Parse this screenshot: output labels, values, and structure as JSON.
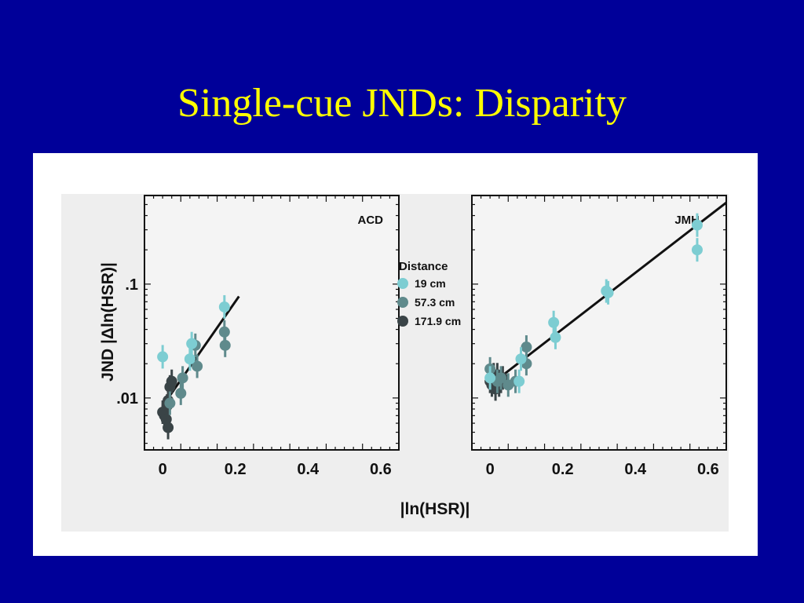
{
  "slide": {
    "title": "Single-cue JNDs: Disparity"
  },
  "colors": {
    "background": "#000099",
    "title": "#ffff00",
    "series": [
      "#7dcdd2",
      "#5f8a8c",
      "#3a4447"
    ]
  },
  "chart_data": [
    {
      "type": "scatter",
      "panel_label": "ACD",
      "ylabel": "JND |Δln(HSR)|",
      "xlabel": "|ln(HSR)|",
      "x_ticks": [
        "0",
        "0.2",
        "0.4",
        "0.6"
      ],
      "y_ticks": [
        ".01",
        ".1"
      ],
      "xlim": [
        -0.05,
        0.65
      ],
      "ylim": [
        0.0035,
        0.6
      ],
      "y_scale": "log",
      "grid": false,
      "fit_line": {
        "from": [
          0.0,
          0.0085
        ],
        "to": [
          0.21,
          0.078
        ]
      },
      "series": [
        {
          "name": "19 cm",
          "points": [
            [
              0.0,
              0.023
            ],
            [
              0.075,
              0.022
            ],
            [
              0.08,
              0.03
            ],
            [
              0.17,
              0.063
            ]
          ]
        },
        {
          "name": "57.3 cm",
          "points": [
            [
              0.02,
              0.009
            ],
            [
              0.05,
              0.011
            ],
            [
              0.055,
              0.015
            ],
            [
              0.09,
              0.029
            ],
            [
              0.095,
              0.019
            ],
            [
              0.17,
              0.038
            ],
            [
              0.172,
              0.029
            ]
          ]
        },
        {
          "name": "171.9 cm",
          "points": [
            [
              0.0,
              0.0075
            ],
            [
              0.005,
              0.007
            ],
            [
              0.01,
              0.0065
            ],
            [
              0.012,
              0.0085
            ],
            [
              0.015,
              0.0095
            ],
            [
              0.02,
              0.0125
            ],
            [
              0.025,
              0.014
            ],
            [
              0.015,
              0.0055
            ]
          ]
        }
      ]
    },
    {
      "type": "scatter",
      "panel_label": "JMH",
      "ylabel": "",
      "xlabel": "|ln(HSR)|",
      "x_ticks": [
        "0",
        "0.2",
        "0.4",
        "0.6"
      ],
      "y_ticks": [],
      "xlim": [
        -0.05,
        0.65
      ],
      "ylim": [
        0.0035,
        0.6
      ],
      "y_scale": "log",
      "grid": false,
      "fit_line": {
        "from": [
          0.0,
          0.013
        ],
        "to": [
          0.65,
          0.52
        ]
      },
      "series": [
        {
          "name": "19 cm",
          "points": [
            [
              0.0,
              0.015
            ],
            [
              0.08,
              0.014
            ],
            [
              0.085,
              0.022
            ],
            [
              0.175,
              0.046
            ],
            [
              0.18,
              0.034
            ],
            [
              0.32,
              0.087
            ],
            [
              0.325,
              0.084
            ],
            [
              0.57,
              0.33
            ],
            [
              0.57,
              0.2
            ]
          ]
        },
        {
          "name": "57.3 cm",
          "points": [
            [
              0.0,
              0.018
            ],
            [
              0.02,
              0.014
            ],
            [
              0.03,
              0.015
            ],
            [
              0.05,
              0.013
            ],
            [
              0.07,
              0.014
            ],
            [
              0.1,
              0.028
            ],
            [
              0.1,
              0.02
            ]
          ]
        },
        {
          "name": "171.9 cm",
          "points": [
            [
              0.0,
              0.014
            ],
            [
              0.005,
              0.013
            ],
            [
              0.01,
              0.015
            ],
            [
              0.015,
              0.012
            ],
            [
              0.02,
              0.016
            ],
            [
              0.025,
              0.013
            ],
            [
              0.03,
              0.014
            ],
            [
              0.035,
              0.015
            ],
            [
              0.01,
              0.016
            ]
          ]
        }
      ]
    }
  ],
  "legend": {
    "title": "Distance",
    "items": [
      "19 cm",
      "57.3 cm",
      "171.9 cm"
    ]
  }
}
